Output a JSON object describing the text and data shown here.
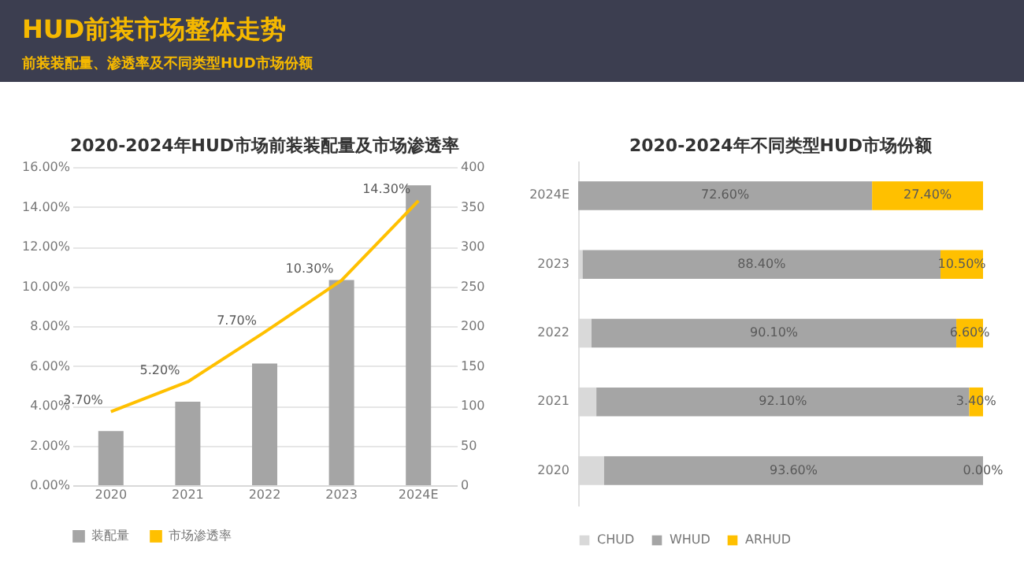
{
  "chart_data": [
    {
      "type": "other",
      "title": "HUD前装市场整体走势",
      "subtitle": "前装装配量、渗透率及不同类型HUD市场份额"
    },
    {
      "type": "bar",
      "title": "2020-2024年HUD市场前装装配量及市场渗透率",
      "categories": [
        "2020",
        "2021",
        "2022",
        "2023",
        "2024E"
      ],
      "series": [
        {
          "name": "装配量",
          "type": "bar",
          "axis": "y2",
          "color": "#a5a5a5",
          "values": [
            68,
            105,
            153,
            258,
            377
          ]
        },
        {
          "name": "市场渗透率",
          "type": "line",
          "axis": "y",
          "color": "#ffc000",
          "values": [
            3.7,
            5.2,
            7.7,
            10.3,
            14.3
          ],
          "value_labels": [
            "3.70%",
            "5.20%",
            "7.70%",
            "10.30%",
            "14.30%"
          ]
        }
      ],
      "ylim": [
        0,
        16
      ],
      "yticks": [
        {
          "value": 0,
          "label": "0.00%"
        },
        {
          "value": 2,
          "label": "2.00%"
        },
        {
          "value": 4,
          "label": "4.00%"
        },
        {
          "value": 6,
          "label": "6.00%"
        },
        {
          "value": 8,
          "label": "8.00%"
        },
        {
          "value": 10,
          "label": "10.00%"
        },
        {
          "value": 12,
          "label": "12.00%"
        },
        {
          "value": 14,
          "label": "14.00%"
        },
        {
          "value": 16,
          "label": "16.00%"
        }
      ],
      "y2lim": [
        0,
        400
      ],
      "y2ticks": [
        0,
        50,
        100,
        150,
        200,
        250,
        300,
        350,
        400
      ],
      "grid": "y",
      "legend": "bottom",
      "marker": "none"
    },
    {
      "type": "bar",
      "orientation": "horizontal",
      "stacked": true,
      "title": "2020-2024年不同类型HUD市场份额",
      "categories": [
        "2024E",
        "2023",
        "2022",
        "2021",
        "2020"
      ],
      "series": [
        {
          "name": "CHUD",
          "color": "#d9d9d9",
          "values": [
            0,
            1.1,
            3.3,
            4.5,
            6.4
          ]
        },
        {
          "name": "WHUD",
          "color": "#a5a5a5",
          "values": [
            72.6,
            88.4,
            90.1,
            92.1,
            93.6
          ],
          "value_labels": [
            "72.60%",
            "88.40%",
            "90.10%",
            "92.10%",
            "93.60%"
          ]
        },
        {
          "name": "ARHUD",
          "color": "#ffc000",
          "values": [
            27.4,
            10.5,
            6.6,
            3.4,
            0
          ],
          "value_labels": [
            "27.40%",
            "10.50%",
            "6.60%",
            "3.40%",
            "0.00%"
          ]
        }
      ],
      "xlim": [
        0,
        100
      ],
      "tick_labels": "y",
      "legend": "bottom"
    }
  ]
}
